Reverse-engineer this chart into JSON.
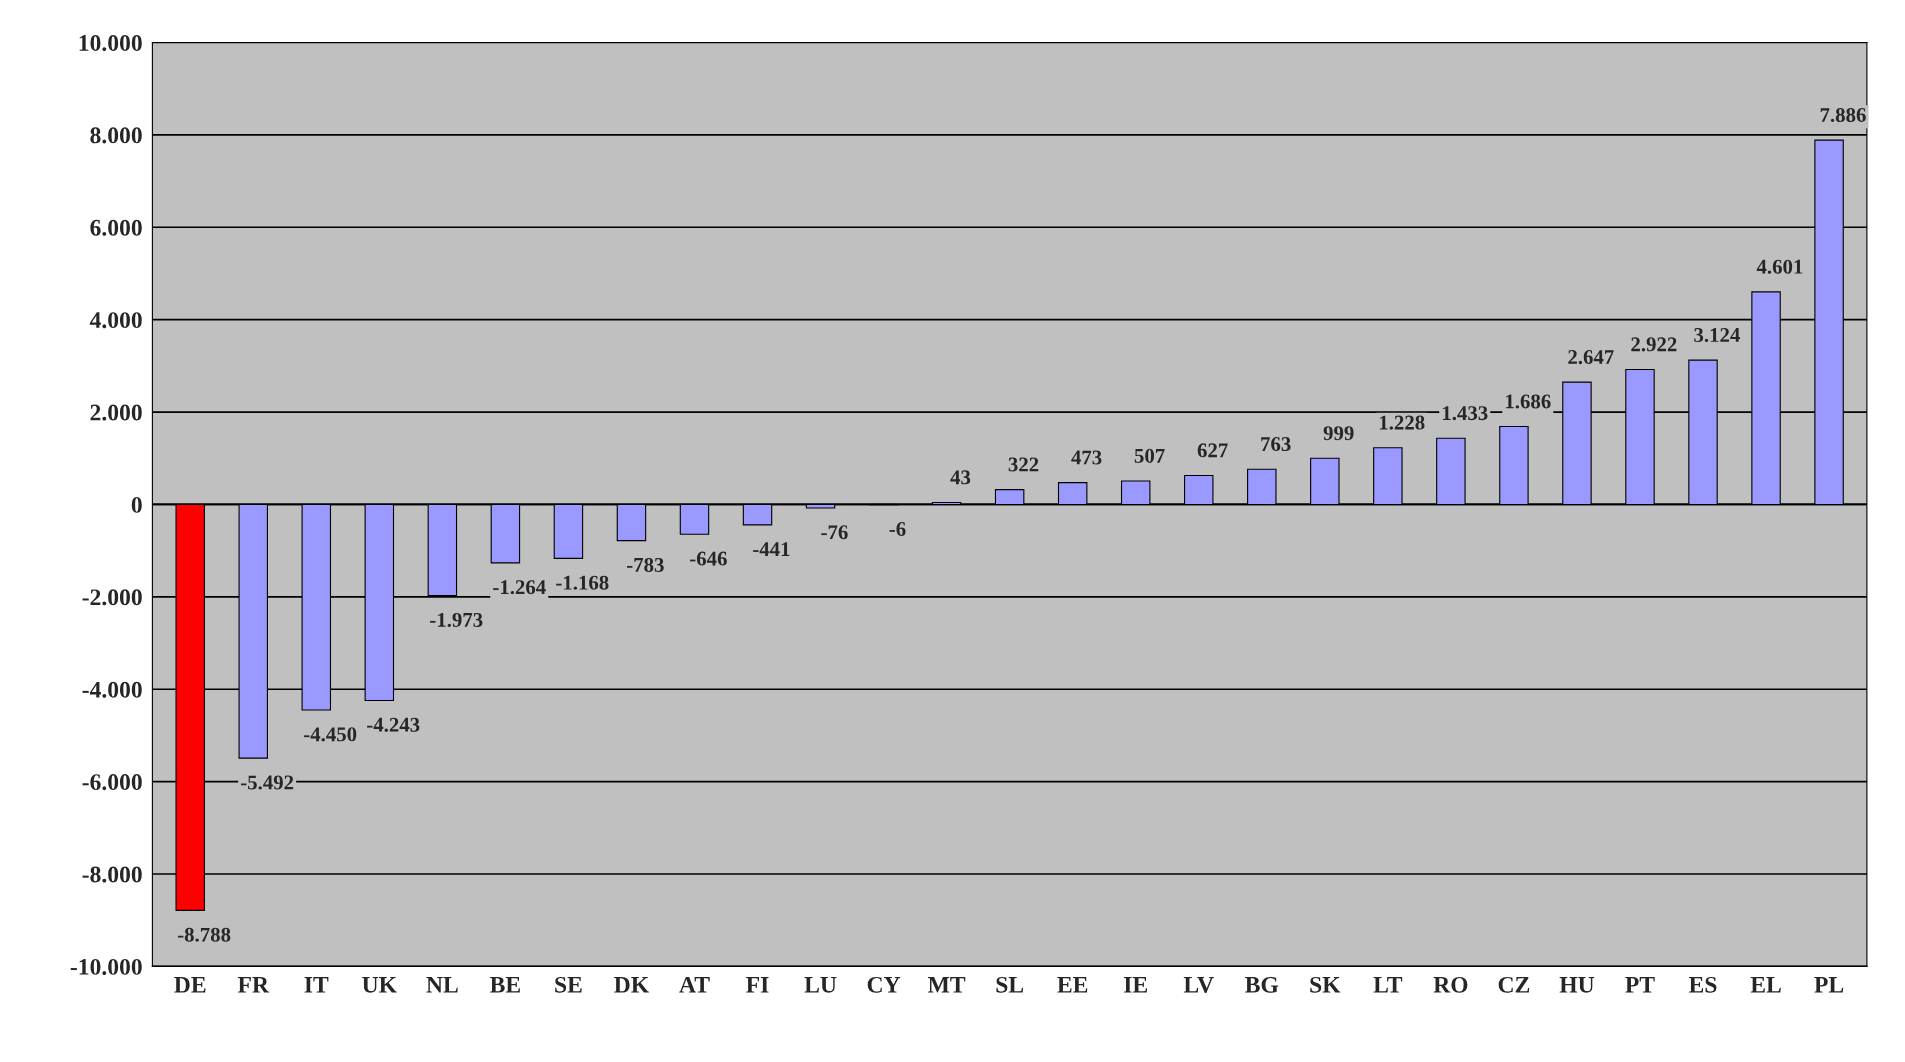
{
  "chart_data": {
    "type": "bar",
    "categories": [
      "DE",
      "FR",
      "IT",
      "UK",
      "NL",
      "BE",
      "SE",
      "DK",
      "AT",
      "FI",
      "LU",
      "CY",
      "MT",
      "SL",
      "EE",
      "IE",
      "LV",
      "BG",
      "SK",
      "LT",
      "RO",
      "CZ",
      "HU",
      "PT",
      "ES",
      "EL",
      "PL"
    ],
    "values": [
      -8788,
      -5492,
      -4450,
      -4243,
      -1973,
      -1264,
      -1168,
      -783,
      -646,
      -441,
      -76,
      -6,
      43,
      322,
      473,
      507,
      627,
      763,
      999,
      1228,
      1433,
      1686,
      2647,
      2922,
      3124,
      4601,
      7886
    ],
    "value_labels": [
      "-8.788",
      "-5.492",
      "-4.450",
      "-4.243",
      "-1.973",
      "-1.264",
      "-1.168",
      "-783",
      "-646",
      "-441",
      "-76",
      "-6",
      "43",
      "322",
      "473",
      "507",
      "627",
      "763",
      "999",
      "1.228",
      "1.433",
      "1.686",
      "2.647",
      "2.922",
      "3.124",
      "4.601",
      "7.886"
    ],
    "colors": [
      "#ff0000",
      "#9999ff",
      "#9999ff",
      "#9999ff",
      "#9999ff",
      "#9999ff",
      "#9999ff",
      "#9999ff",
      "#9999ff",
      "#9999ff",
      "#9999ff",
      "#9999ff",
      "#9999ff",
      "#9999ff",
      "#9999ff",
      "#9999ff",
      "#9999ff",
      "#9999ff",
      "#9999ff",
      "#9999ff",
      "#9999ff",
      "#9999ff",
      "#9999ff",
      "#9999ff",
      "#9999ff",
      "#9999ff",
      "#9999ff"
    ],
    "ylim": [
      -10000,
      10000
    ],
    "yticks": [
      {
        "value": -10000,
        "label": "-10.000"
      },
      {
        "value": -8000,
        "label": "-8.000"
      },
      {
        "value": -6000,
        "label": "-6.000"
      },
      {
        "value": -4000,
        "label": "-4.000"
      },
      {
        "value": -2000,
        "label": "-2.000"
      },
      0,
      {
        "value": 2000,
        "label": "2.000"
      },
      {
        "value": 4000,
        "label": "4.000"
      },
      {
        "value": 6000,
        "label": "6.000"
      },
      {
        "value": 8000,
        "label": "8.000"
      },
      {
        "value": 10000,
        "label": "10.000"
      }
    ],
    "grid": "y"
  }
}
